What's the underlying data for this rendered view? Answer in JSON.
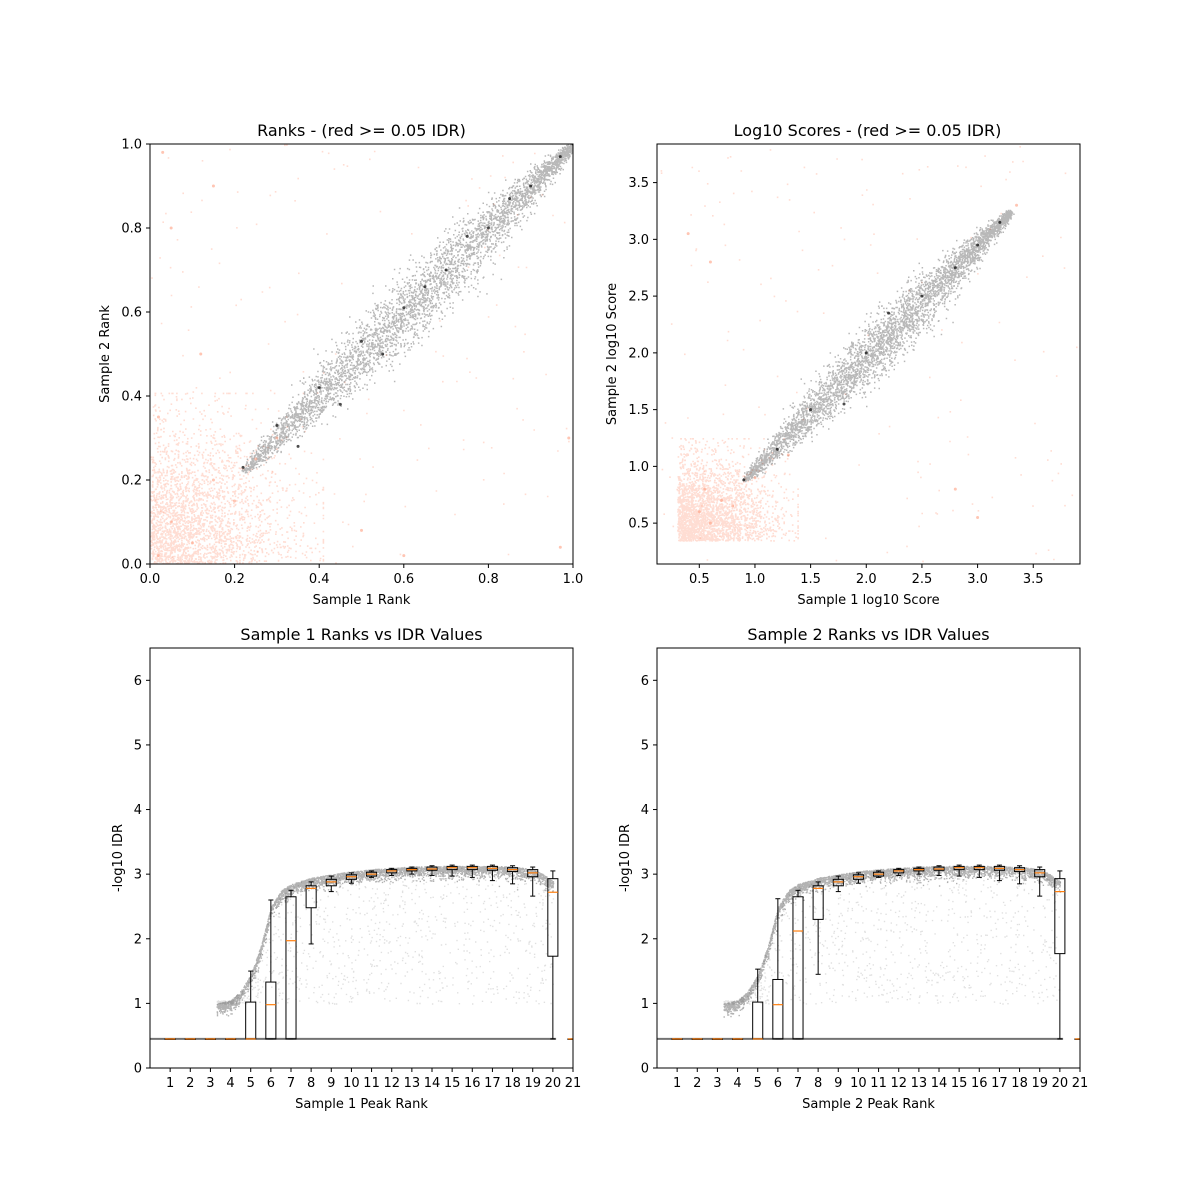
{
  "chart_data": [
    {
      "id": "ranks",
      "type": "scatter",
      "title": "Ranks - (red >= 0.05 IDR)",
      "xlabel": "Sample 1 Rank",
      "ylabel": "Sample 2 Rank",
      "xlim": [
        0.0,
        1.0
      ],
      "ylim": [
        0.0,
        1.0
      ],
      "xticks": [
        0.0,
        0.2,
        0.4,
        0.6,
        0.8,
        1.0
      ],
      "yticks": [
        0.0,
        0.2,
        0.4,
        0.6,
        0.8,
        1.0
      ],
      "xtick_labels": [
        "0.0",
        "0.2",
        "0.4",
        "0.6",
        "0.8",
        "1.0"
      ],
      "ytick_labels": [
        "0.0",
        "0.2",
        "0.4",
        "0.6",
        "0.8",
        "1.0"
      ],
      "grid": false,
      "colors": {
        "pass": "#000000",
        "fail": "#ff9e80"
      },
      "bulk": {
        "pass_start": [
          0.22,
          0.22
        ],
        "pass_end": [
          1.0,
          1.0
        ],
        "fail_corner": [
          0.0,
          0.0
        ],
        "fail_extent": [
          0.34,
          0.34
        ]
      },
      "series": [
        {
          "values": [
            [
              0.22,
              0.23
            ],
            [
              0.3,
              0.33
            ],
            [
              0.4,
              0.42
            ],
            [
              0.5,
              0.53
            ],
            [
              0.6,
              0.61
            ],
            [
              0.7,
              0.7
            ],
            [
              0.8,
              0.8
            ],
            [
              0.9,
              0.9
            ],
            [
              0.97,
              0.97
            ],
            [
              1.0,
              1.0
            ],
            [
              0.35,
              0.28
            ],
            [
              0.45,
              0.38
            ],
            [
              0.55,
              0.5
            ],
            [
              0.65,
              0.66
            ],
            [
              0.75,
              0.78
            ],
            [
              0.85,
              0.87
            ]
          ]
        },
        {
          "values": [
            [
              0.02,
              0.02
            ],
            [
              0.05,
              0.1
            ],
            [
              0.1,
              0.05
            ],
            [
              0.15,
              0.2
            ],
            [
              0.2,
              0.15
            ],
            [
              0.25,
              0.25
            ],
            [
              0.3,
              0.3
            ],
            [
              0.03,
              0.98
            ],
            [
              0.15,
              0.9
            ],
            [
              0.02,
              0.35
            ],
            [
              0.5,
              0.08
            ],
            [
              0.6,
              0.02
            ],
            [
              0.97,
              0.04
            ],
            [
              0.99,
              0.3
            ],
            [
              0.12,
              0.5
            ],
            [
              0.05,
              0.8
            ]
          ]
        }
      ]
    },
    {
      "id": "scores",
      "type": "scatter",
      "title": "Log10 Scores - (red >= 0.05 IDR)",
      "xlabel": "Sample 1 log10 Score",
      "ylabel": "Sample 2 log10 Score",
      "xlim": [
        0.12,
        3.92
      ],
      "ylim": [
        0.14,
        3.84
      ],
      "xticks": [
        0.5,
        1.0,
        1.5,
        2.0,
        2.5,
        3.0,
        3.5
      ],
      "yticks": [
        0.5,
        1.0,
        1.5,
        2.0,
        2.5,
        3.0,
        3.5
      ],
      "xtick_labels": [
        "0.5",
        "1.0",
        "1.5",
        "2.0",
        "2.5",
        "3.0",
        "3.5"
      ],
      "ytick_labels": [
        "0.5",
        "1.0",
        "1.5",
        "2.0",
        "2.5",
        "3.0",
        "3.5"
      ],
      "grid": false,
      "colors": {
        "pass": "#000000",
        "fail": "#ff9e80"
      },
      "bulk": {
        "pass_start": [
          0.9,
          0.88
        ],
        "pass_end": [
          3.3,
          3.25
        ],
        "fail_corner": [
          0.3,
          0.35
        ],
        "fail_extent": [
          1.2,
          1.1
        ]
      },
      "series": [
        {
          "values": [
            [
              0.9,
              0.88
            ],
            [
              1.2,
              1.15
            ],
            [
              1.5,
              1.5
            ],
            [
              2.0,
              2.0
            ],
            [
              2.5,
              2.5
            ],
            [
              3.0,
              2.95
            ],
            [
              3.2,
              3.15
            ],
            [
              1.8,
              1.55
            ],
            [
              2.2,
              2.35
            ],
            [
              2.8,
              2.75
            ]
          ]
        },
        {
          "values": [
            [
              0.5,
              0.6
            ],
            [
              0.6,
              0.5
            ],
            [
              0.7,
              0.7
            ],
            [
              0.8,
              0.65
            ],
            [
              0.55,
              0.8
            ],
            [
              1.0,
              0.9
            ],
            [
              0.4,
              3.05
            ],
            [
              0.6,
              2.8
            ],
            [
              1.3,
              1.1
            ],
            [
              2.8,
              0.8
            ],
            [
              3.0,
              0.55
            ],
            [
              3.35,
              3.3
            ]
          ]
        }
      ]
    },
    {
      "id": "s1idr",
      "type": "scatter",
      "title": "Sample 1 Ranks vs IDR Values",
      "xlabel": "Sample 1 Peak Rank",
      "ylabel": "-log10 IDR",
      "xlim": [
        0,
        21
      ],
      "ylim": [
        0,
        6.5
      ],
      "xticks": [
        1,
        2,
        3,
        4,
        5,
        6,
        7,
        8,
        9,
        10,
        11,
        12,
        13,
        14,
        15,
        16,
        17,
        18,
        19,
        20,
        21
      ],
      "yticks": [
        0,
        1,
        2,
        3,
        4,
        5,
        6
      ],
      "xtick_labels": [
        "1",
        "2",
        "3",
        "4",
        "5",
        "6",
        "7",
        "8",
        "9",
        "10",
        "11",
        "12",
        "13",
        "14",
        "15",
        "16",
        "17",
        "18",
        "19",
        "20",
        "21"
      ],
      "ytick_labels": [
        "0",
        "1",
        "2",
        "3",
        "4",
        "5",
        "6"
      ],
      "grid": false,
      "colors": {
        "points": "#000000",
        "box": "#000000",
        "median": "#ff7f0e"
      },
      "idr_floor": 0.45,
      "idr_curve": {
        "x": [
          3.3,
          4,
          4.5,
          5,
          5.5,
          6,
          6.5,
          7,
          8,
          9,
          10,
          11,
          12,
          13,
          14,
          15,
          16,
          17,
          18,
          19,
          19.5,
          20
        ],
        "y": [
          1.0,
          1.05,
          1.2,
          1.45,
          1.9,
          2.5,
          2.75,
          2.85,
          2.95,
          3.0,
          3.05,
          3.08,
          3.1,
          3.12,
          3.13,
          3.13,
          3.13,
          3.13,
          3.12,
          3.08,
          3.0,
          2.9
        ]
      },
      "boxplot": [
        {
          "x": 1,
          "q1": 0.45,
          "median": 0.45,
          "q3": 0.45,
          "whislo": 0.45,
          "whishi": 0.45
        },
        {
          "x": 2,
          "q1": 0.45,
          "median": 0.45,
          "q3": 0.45,
          "whislo": 0.45,
          "whishi": 0.45
        },
        {
          "x": 3,
          "q1": 0.45,
          "median": 0.45,
          "q3": 0.45,
          "whislo": 0.45,
          "whishi": 0.45
        },
        {
          "x": 4,
          "q1": 0.45,
          "median": 0.45,
          "q3": 0.45,
          "whislo": 0.45,
          "whishi": 0.45
        },
        {
          "x": 5,
          "q1": 0.45,
          "median": 0.45,
          "q3": 1.02,
          "whislo": 0.45,
          "whishi": 1.5
        },
        {
          "x": 6,
          "q1": 0.45,
          "median": 0.98,
          "q3": 1.33,
          "whislo": 0.45,
          "whishi": 2.6
        },
        {
          "x": 7,
          "q1": 0.45,
          "median": 1.97,
          "q3": 2.65,
          "whislo": 0.45,
          "whishi": 2.75
        },
        {
          "x": 8,
          "q1": 2.48,
          "median": 2.78,
          "q3": 2.82,
          "whislo": 1.92,
          "whishi": 2.88
        },
        {
          "x": 9,
          "q1": 2.82,
          "median": 2.88,
          "q3": 2.92,
          "whislo": 2.73,
          "whishi": 2.97
        },
        {
          "x": 10,
          "q1": 2.92,
          "median": 2.96,
          "q3": 2.99,
          "whislo": 2.86,
          "whishi": 3.02
        },
        {
          "x": 11,
          "q1": 2.97,
          "median": 3.0,
          "q3": 3.03,
          "whislo": 2.95,
          "whishi": 3.05
        },
        {
          "x": 12,
          "q1": 3.02,
          "median": 3.05,
          "q3": 3.07,
          "whislo": 2.98,
          "whishi": 3.09
        },
        {
          "x": 13,
          "q1": 3.05,
          "median": 3.07,
          "q3": 3.09,
          "whislo": 3.0,
          "whishi": 3.11
        },
        {
          "x": 14,
          "q1": 3.06,
          "median": 3.08,
          "q3": 3.11,
          "whislo": 2.98,
          "whishi": 3.13
        },
        {
          "x": 15,
          "q1": 3.07,
          "median": 3.1,
          "q3": 3.12,
          "whislo": 2.97,
          "whishi": 3.14
        },
        {
          "x": 16,
          "q1": 3.07,
          "median": 3.1,
          "q3": 3.12,
          "whislo": 2.95,
          "whishi": 3.14
        },
        {
          "x": 17,
          "q1": 3.06,
          "median": 3.09,
          "q3": 3.12,
          "whislo": 2.9,
          "whishi": 3.14
        },
        {
          "x": 18,
          "q1": 3.04,
          "median": 3.07,
          "q3": 3.1,
          "whislo": 2.85,
          "whishi": 3.13
        },
        {
          "x": 19,
          "q1": 2.96,
          "median": 3.02,
          "q3": 3.07,
          "whislo": 2.66,
          "whishi": 3.11
        },
        {
          "x": 20,
          "q1": 1.73,
          "median": 2.72,
          "q3": 2.93,
          "whislo": 0.45,
          "whishi": 3.05
        },
        {
          "x": 21,
          "q1": 0.45,
          "median": 0.45,
          "q3": 0.45,
          "whislo": 0.45,
          "whishi": 0.45
        }
      ]
    },
    {
      "id": "s2idr",
      "type": "scatter",
      "title": "Sample 2 Ranks vs IDR Values",
      "xlabel": "Sample 2 Peak Rank",
      "ylabel": "-log10 IDR",
      "xlim": [
        0,
        21
      ],
      "ylim": [
        0,
        6.5
      ],
      "xticks": [
        1,
        2,
        3,
        4,
        5,
        6,
        7,
        8,
        9,
        10,
        11,
        12,
        13,
        14,
        15,
        16,
        17,
        18,
        19,
        20,
        21
      ],
      "yticks": [
        0,
        1,
        2,
        3,
        4,
        5,
        6
      ],
      "xtick_labels": [
        "1",
        "2",
        "3",
        "4",
        "5",
        "6",
        "7",
        "8",
        "9",
        "10",
        "11",
        "12",
        "13",
        "14",
        "15",
        "16",
        "17",
        "18",
        "19",
        "20",
        "21"
      ],
      "ytick_labels": [
        "0",
        "1",
        "2",
        "3",
        "4",
        "5",
        "6"
      ],
      "grid": false,
      "colors": {
        "points": "#000000",
        "box": "#000000",
        "median": "#ff7f0e"
      },
      "idr_floor": 0.45,
      "idr_curve": {
        "x": [
          3.3,
          4,
          4.5,
          5,
          5.5,
          6,
          6.5,
          7,
          8,
          9,
          10,
          11,
          12,
          13,
          14,
          15,
          16,
          17,
          18,
          19,
          19.5,
          20
        ],
        "y": [
          1.0,
          1.05,
          1.2,
          1.45,
          1.9,
          2.5,
          2.75,
          2.85,
          2.95,
          3.0,
          3.05,
          3.08,
          3.1,
          3.12,
          3.13,
          3.13,
          3.13,
          3.13,
          3.12,
          3.08,
          3.0,
          2.9
        ]
      },
      "boxplot": [
        {
          "x": 1,
          "q1": 0.45,
          "median": 0.45,
          "q3": 0.45,
          "whislo": 0.45,
          "whishi": 0.45
        },
        {
          "x": 2,
          "q1": 0.45,
          "median": 0.45,
          "q3": 0.45,
          "whislo": 0.45,
          "whishi": 0.45
        },
        {
          "x": 3,
          "q1": 0.45,
          "median": 0.45,
          "q3": 0.45,
          "whislo": 0.45,
          "whishi": 0.45
        },
        {
          "x": 4,
          "q1": 0.45,
          "median": 0.45,
          "q3": 0.45,
          "whislo": 0.45,
          "whishi": 0.45
        },
        {
          "x": 5,
          "q1": 0.45,
          "median": 0.45,
          "q3": 1.02,
          "whislo": 0.45,
          "whishi": 1.53
        },
        {
          "x": 6,
          "q1": 0.45,
          "median": 0.98,
          "q3": 1.37,
          "whislo": 0.45,
          "whishi": 2.62
        },
        {
          "x": 7,
          "q1": 0.45,
          "median": 2.12,
          "q3": 2.65,
          "whislo": 0.45,
          "whishi": 2.75
        },
        {
          "x": 8,
          "q1": 2.3,
          "median": 2.78,
          "q3": 2.82,
          "whislo": 1.45,
          "whishi": 2.88
        },
        {
          "x": 9,
          "q1": 2.82,
          "median": 2.88,
          "q3": 2.92,
          "whislo": 2.73,
          "whishi": 2.97
        },
        {
          "x": 10,
          "q1": 2.92,
          "median": 2.96,
          "q3": 2.99,
          "whislo": 2.86,
          "whishi": 3.02
        },
        {
          "x": 11,
          "q1": 2.97,
          "median": 3.0,
          "q3": 3.03,
          "whislo": 2.95,
          "whishi": 3.05
        },
        {
          "x": 12,
          "q1": 3.02,
          "median": 3.05,
          "q3": 3.07,
          "whislo": 2.98,
          "whishi": 3.09
        },
        {
          "x": 13,
          "q1": 3.05,
          "median": 3.07,
          "q3": 3.09,
          "whislo": 3.0,
          "whishi": 3.11
        },
        {
          "x": 14,
          "q1": 3.06,
          "median": 3.08,
          "q3": 3.11,
          "whislo": 2.98,
          "whishi": 3.13
        },
        {
          "x": 15,
          "q1": 3.07,
          "median": 3.1,
          "q3": 3.12,
          "whislo": 2.97,
          "whishi": 3.14
        },
        {
          "x": 16,
          "q1": 3.07,
          "median": 3.1,
          "q3": 3.12,
          "whislo": 2.95,
          "whishi": 3.14
        },
        {
          "x": 17,
          "q1": 3.06,
          "median": 3.09,
          "q3": 3.12,
          "whislo": 2.9,
          "whishi": 3.14
        },
        {
          "x": 18,
          "q1": 3.04,
          "median": 3.07,
          "q3": 3.1,
          "whislo": 2.85,
          "whishi": 3.13
        },
        {
          "x": 19,
          "q1": 2.96,
          "median": 3.02,
          "q3": 3.07,
          "whislo": 2.66,
          "whishi": 3.11
        },
        {
          "x": 20,
          "q1": 1.77,
          "median": 2.73,
          "q3": 2.93,
          "whislo": 0.45,
          "whishi": 3.05
        },
        {
          "x": 21,
          "q1": 0.45,
          "median": 0.45,
          "q3": 0.45,
          "whislo": 0.45,
          "whishi": 0.45
        }
      ]
    }
  ]
}
